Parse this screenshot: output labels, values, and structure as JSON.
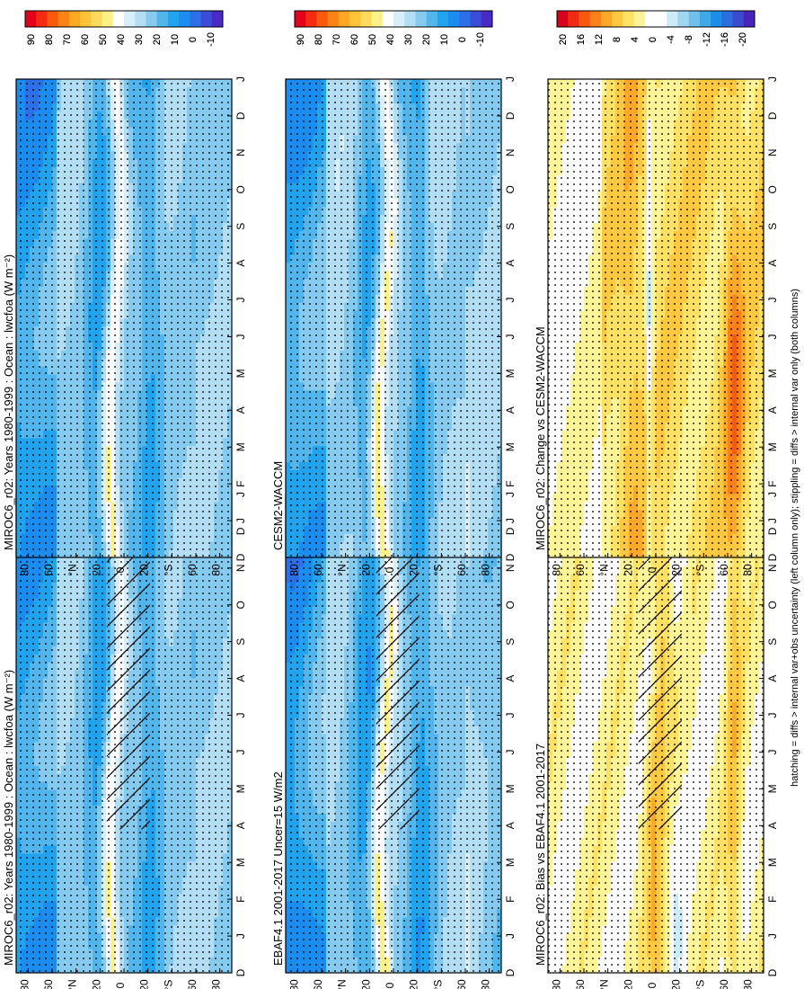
{
  "footnote": "hatching = diffs > internal var+obs uncertainty (left column only); stippling = diffs > internal var only (both columns)",
  "colors": {
    "abs_scale": [
      "#e4001c",
      "#f52a10",
      "#fb5a0c",
      "#fd8314",
      "#fea823",
      "#ffc43a",
      "#ffda5c",
      "#fff088",
      "#ffffff",
      "#d8eef9",
      "#b3def4",
      "#86cbef",
      "#52b6ec",
      "#21a3ee",
      "#1b8cf0",
      "#2d6fe6",
      "#3d4cd8",
      "#4a2ac4"
    ],
    "diff_scale": [
      "#d8001a",
      "#ef2b14",
      "#fa5810",
      "#fd8118",
      "#fea82a",
      "#ffc841",
      "#ffe165",
      "#fff497",
      "#ffffff",
      "#ffffff",
      "#cdeaf7",
      "#9fd7f1",
      "#6fc1ec",
      "#3ea9e9",
      "#1d8ee8",
      "#2a6ddc",
      "#3a4bcf",
      "#4725bb"
    ]
  },
  "chart_data": [
    {
      "type": "heatmap",
      "title": "MIROC6_r02: Years 1980-1999 : Ocean : lwcfoa (W m⁻²)",
      "x_ticks": [
        "D",
        "J",
        "F",
        "M",
        "A",
        "M",
        "J",
        "J",
        "A",
        "S",
        "O",
        "N",
        "D",
        "J"
      ],
      "y_ticks": [
        "80",
        "60",
        "°N",
        "20",
        "0",
        "20",
        "°S",
        "60",
        "80"
      ],
      "y_range": [
        -90,
        90
      ],
      "colorbar_ticks": [
        "90",
        "80",
        "70",
        "60",
        "50",
        "40",
        "30",
        "20",
        "10",
        "0",
        "-10"
      ],
      "colorbar_range": [
        -15,
        95
      ],
      "scale": "abs",
      "pattern": "abs",
      "hatching": true,
      "stippling": true
    },
    {
      "type": "heatmap",
      "title": "EBAF4.1 2001-2017 Uncer=15 W/m2",
      "x_ticks": [
        "D",
        "J",
        "F",
        "M",
        "A",
        "M",
        "J",
        "J",
        "A",
        "S",
        "O",
        "N",
        "D",
        "J"
      ],
      "y_ticks": [
        "80",
        "60",
        "°N",
        "20",
        "0",
        "20",
        "°S",
        "60",
        "80"
      ],
      "y_range": [
        -90,
        90
      ],
      "colorbar_ticks": [
        "90",
        "80",
        "70",
        "60",
        "50",
        "40",
        "30",
        "20",
        "10",
        "0",
        "-10"
      ],
      "colorbar_range": [
        -15,
        95
      ],
      "scale": "abs",
      "pattern": "abs2",
      "hatching": true,
      "stippling": true
    },
    {
      "type": "heatmap",
      "title": "MIROC6_r02: Bias vs EBAF4.1 2001-2017",
      "x_ticks": [
        "D",
        "J",
        "F",
        "M",
        "A",
        "M",
        "J",
        "J",
        "A",
        "S",
        "O",
        "N",
        "D",
        "J"
      ],
      "y_ticks": [
        "80",
        "60",
        "°N",
        "20",
        "0",
        "20",
        "°S",
        "60",
        "80"
      ],
      "y_range": [
        -90,
        90
      ],
      "colorbar_ticks": [
        "20",
        "16",
        "12",
        "8",
        "4",
        "0",
        "-4",
        "-8",
        "-12",
        "-16",
        "-20"
      ],
      "colorbar_range": [
        -22,
        22
      ],
      "scale": "diff",
      "pattern": "bias",
      "hatching": true,
      "stippling": true
    },
    {
      "type": "heatmap",
      "title": "MIROC6_r02: Years 1980-1999 : Ocean : lwcfoa (W m⁻²)",
      "x_ticks": [
        "D",
        "J",
        "F",
        "M",
        "A",
        "M",
        "J",
        "J",
        "A",
        "S",
        "O",
        "N",
        "D",
        "J"
      ],
      "y_ticks": [
        "80",
        "60",
        "°N",
        "20",
        "0",
        "20",
        "°S",
        "60",
        "80"
      ],
      "y_range": [
        -90,
        90
      ],
      "colorbar_ticks": [
        "90",
        "80",
        "70",
        "60",
        "50",
        "40",
        "30",
        "20",
        "10",
        "0",
        "-10"
      ],
      "colorbar_range": [
        -15,
        95
      ],
      "scale": "abs",
      "pattern": "abs",
      "hatching": false,
      "stippling": true
    },
    {
      "type": "heatmap",
      "title": "CESM2-WACCM",
      "x_ticks": [
        "D",
        "J",
        "F",
        "M",
        "A",
        "M",
        "J",
        "J",
        "A",
        "S",
        "O",
        "N",
        "D",
        "J"
      ],
      "y_ticks": [
        "80",
        "60",
        "°N",
        "20",
        "0",
        "20",
        "°S",
        "60",
        "80"
      ],
      "y_range": [
        -90,
        90
      ],
      "colorbar_ticks": [
        "90",
        "80",
        "70",
        "60",
        "50",
        "40",
        "30",
        "20",
        "10",
        "0",
        "-10"
      ],
      "colorbar_range": [
        -15,
        95
      ],
      "scale": "abs",
      "pattern": "cesm",
      "hatching": false,
      "stippling": true
    },
    {
      "type": "heatmap",
      "title": "MIROC6_r02: Change vs CESM2-WACCM",
      "x_ticks": [
        "D",
        "J",
        "F",
        "M",
        "A",
        "M",
        "J",
        "J",
        "A",
        "S",
        "O",
        "N",
        "D",
        "J"
      ],
      "y_ticks": [
        "80",
        "60",
        "°N",
        "20",
        "0",
        "20",
        "°S",
        "60",
        "80"
      ],
      "y_range": [
        -90,
        90
      ],
      "colorbar_ticks": [
        "20",
        "16",
        "12",
        "8",
        "4",
        "0",
        "-4",
        "-8",
        "-12",
        "-16",
        "-20"
      ],
      "colorbar_range": [
        -22,
        22
      ],
      "scale": "diff",
      "pattern": "change",
      "hatching": false,
      "stippling": true
    }
  ]
}
